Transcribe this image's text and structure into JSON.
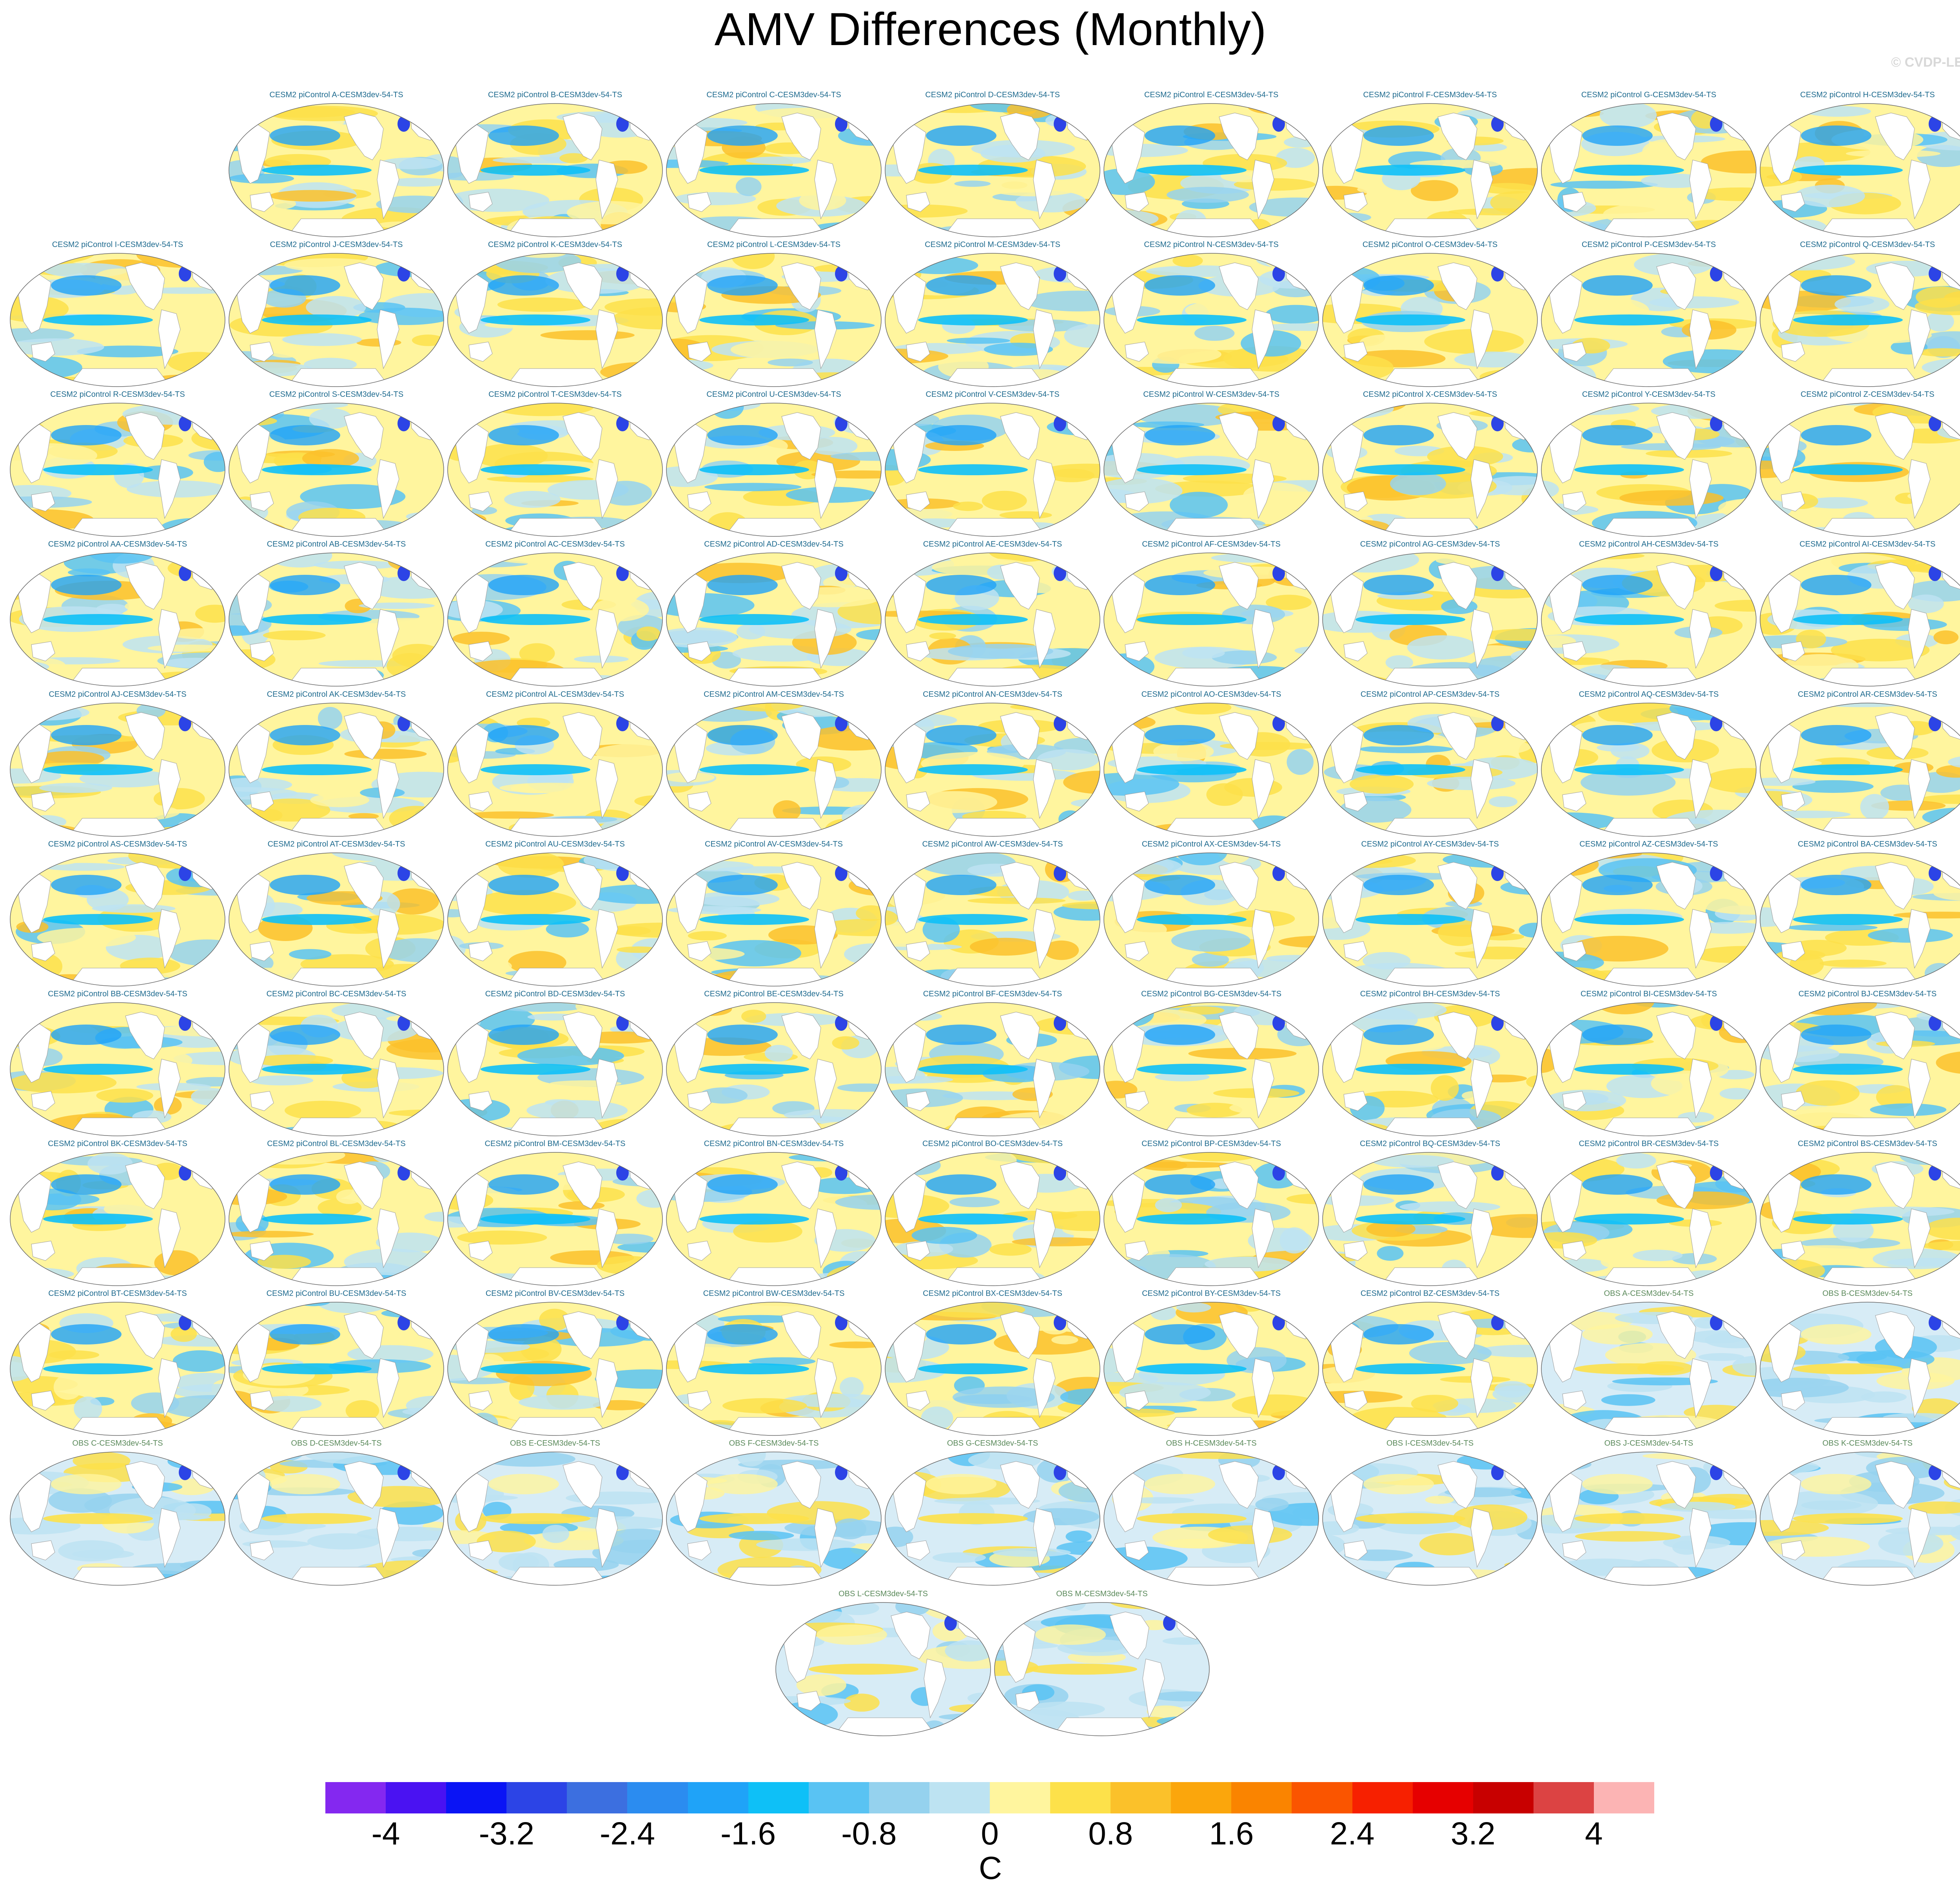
{
  "title": "AMV Differences (Monthly)",
  "copyright": "© CVDP-LE",
  "chart_data": {
    "type": "heatmap",
    "title": "AMV Differences (Monthly)",
    "description_units": "C",
    "panels": [
      "CESM2 piControl A-CESM3dev-54-TS",
      "CESM2 piControl B-CESM3dev-54-TS",
      "CESM2 piControl C-CESM3dev-54-TS",
      "CESM2 piControl D-CESM3dev-54-TS",
      "CESM2 piControl E-CESM3dev-54-TS",
      "CESM2 piControl F-CESM3dev-54-TS",
      "CESM2 piControl G-CESM3dev-54-TS",
      "CESM2 piControl H-CESM3dev-54-TS",
      "CESM2 piControl I-CESM3dev-54-TS",
      "CESM2 piControl J-CESM3dev-54-TS",
      "CESM2 piControl K-CESM3dev-54-TS",
      "CESM2 piControl L-CESM3dev-54-TS",
      "CESM2 piControl M-CESM3dev-54-TS",
      "CESM2 piControl N-CESM3dev-54-TS",
      "CESM2 piControl O-CESM3dev-54-TS",
      "CESM2 piControl P-CESM3dev-54-TS",
      "CESM2 piControl Q-CESM3dev-54-TS",
      "CESM2 piControl R-CESM3dev-54-TS",
      "CESM2 piControl S-CESM3dev-54-TS",
      "CESM2 piControl T-CESM3dev-54-TS",
      "CESM2 piControl U-CESM3dev-54-TS",
      "CESM2 piControl V-CESM3dev-54-TS",
      "CESM2 piControl W-CESM3dev-54-TS",
      "CESM2 piControl X-CESM3dev-54-TS",
      "CESM2 piControl Y-CESM3dev-54-TS",
      "CESM2 piControl Z-CESM3dev-54-TS",
      "CESM2 piControl AA-CESM3dev-54-TS",
      "CESM2 piControl AB-CESM3dev-54-TS",
      "CESM2 piControl AC-CESM3dev-54-TS",
      "CESM2 piControl AD-CESM3dev-54-TS",
      "CESM2 piControl AE-CESM3dev-54-TS",
      "CESM2 piControl AF-CESM3dev-54-TS",
      "CESM2 piControl AG-CESM3dev-54-TS",
      "CESM2 piControl AH-CESM3dev-54-TS",
      "CESM2 piControl AI-CESM3dev-54-TS",
      "CESM2 piControl AJ-CESM3dev-54-TS",
      "CESM2 piControl AK-CESM3dev-54-TS",
      "CESM2 piControl AL-CESM3dev-54-TS",
      "CESM2 piControl AM-CESM3dev-54-TS",
      "CESM2 piControl AN-CESM3dev-54-TS",
      "CESM2 piControl AO-CESM3dev-54-TS",
      "CESM2 piControl AP-CESM3dev-54-TS",
      "CESM2 piControl AQ-CESM3dev-54-TS",
      "CESM2 piControl AR-CESM3dev-54-TS",
      "CESM2 piControl AS-CESM3dev-54-TS",
      "CESM2 piControl AT-CESM3dev-54-TS",
      "CESM2 piControl AU-CESM3dev-54-TS",
      "CESM2 piControl AV-CESM3dev-54-TS",
      "CESM2 piControl AW-CESM3dev-54-TS",
      "CESM2 piControl AX-CESM3dev-54-TS",
      "CESM2 piControl AY-CESM3dev-54-TS",
      "CESM2 piControl AZ-CESM3dev-54-TS",
      "CESM2 piControl BA-CESM3dev-54-TS",
      "CESM2 piControl BB-CESM3dev-54-TS",
      "CESM2 piControl BC-CESM3dev-54-TS",
      "CESM2 piControl BD-CESM3dev-54-TS",
      "CESM2 piControl BE-CESM3dev-54-TS",
      "CESM2 piControl BF-CESM3dev-54-TS",
      "CESM2 piControl BG-CESM3dev-54-TS",
      "CESM2 piControl BH-CESM3dev-54-TS",
      "CESM2 piControl BI-CESM3dev-54-TS",
      "CESM2 piControl BJ-CESM3dev-54-TS",
      "CESM2 piControl BK-CESM3dev-54-TS",
      "CESM2 piControl BL-CESM3dev-54-TS",
      "CESM2 piControl BM-CESM3dev-54-TS",
      "CESM2 piControl BN-CESM3dev-54-TS",
      "CESM2 piControl BO-CESM3dev-54-TS",
      "CESM2 piControl BP-CESM3dev-54-TS",
      "CESM2 piControl BQ-CESM3dev-54-TS",
      "CESM2 piControl BR-CESM3dev-54-TS",
      "CESM2 piControl BS-CESM3dev-54-TS",
      "CESM2 piControl BT-CESM3dev-54-TS",
      "CESM2 piControl BU-CESM3dev-54-TS",
      "CESM2 piControl BV-CESM3dev-54-TS",
      "CESM2 piControl BW-CESM3dev-54-TS",
      "CESM2 piControl BX-CESM3dev-54-TS",
      "CESM2 piControl BY-CESM3dev-54-TS",
      "CESM2 piControl BZ-CESM3dev-54-TS",
      "OBS A-CESM3dev-54-TS",
      "OBS B-CESM3dev-54-TS",
      "OBS C-CESM3dev-54-TS",
      "OBS D-CESM3dev-54-TS",
      "OBS E-CESM3dev-54-TS",
      "OBS F-CESM3dev-54-TS",
      "OBS G-CESM3dev-54-TS",
      "OBS H-CESM3dev-54-TS",
      "OBS I-CESM3dev-54-TS",
      "OBS J-CESM3dev-54-TS",
      "OBS K-CESM3dev-54-TS",
      "OBS L-CESM3dev-54-TS",
      "OBS M-CESM3dev-54-TS"
    ],
    "colorbar": {
      "unit": "C",
      "tick_labels": [
        "-4",
        "-3.2",
        "-2.4",
        "-1.6",
        "-0.8",
        "0",
        "0.8",
        "1.6",
        "2.4",
        "3.2",
        "4"
      ],
      "tick_values": [
        -4,
        -3.2,
        -2.4,
        -1.6,
        -0.8,
        0,
        0.8,
        1.6,
        2.4,
        3.2,
        4
      ],
      "colors": [
        "#8428f0",
        "#4a12f2",
        "#0a14f5",
        "#2c44e6",
        "#3c6fe0",
        "#2b8cf0",
        "#1fa3f8",
        "#0ec0f7",
        "#59c3f3",
        "#95d2ee",
        "#bde3f2",
        "#fff59e",
        "#fde14a",
        "#fbc12a",
        "#fba60c",
        "#fa8400",
        "#fa5500",
        "#f72000",
        "#e60000",
        "#c80000",
        "#dc4343",
        "#fcb4b4"
      ]
    },
    "map_palette": {
      "land": "#ffffff",
      "coast": "#9a9a9a",
      "neutral_warm": "#fff59e",
      "neutral_cool": "#bde3f2"
    }
  }
}
